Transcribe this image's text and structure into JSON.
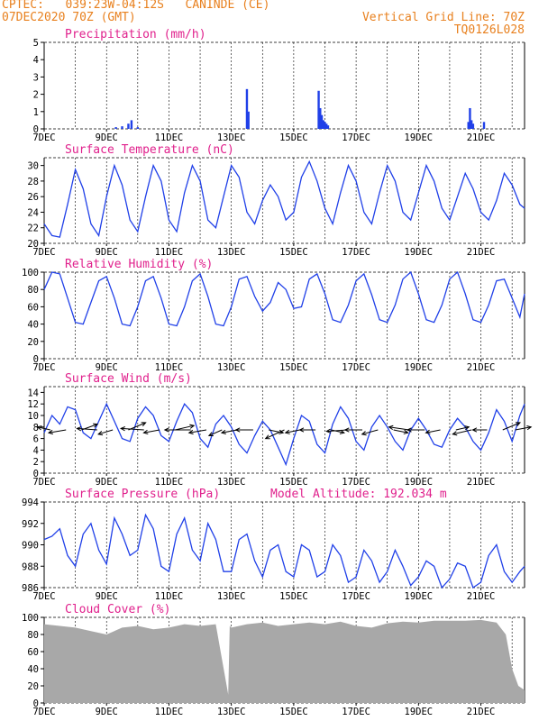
{
  "header": {
    "line1_left": "CPTEC:   039:23W-04:12S   CANINDE (CE)",
    "line2_left": "07DEC2020 70Z (GMT)",
    "line2_right": "Vertical Grid Line: 70Z",
    "line3_right": "TQ0126L028",
    "color": "#e8801e"
  },
  "colors": {
    "title": "#e0208c",
    "line": "#2040e8",
    "bar": "#2040e8",
    "cloud": "#a8a8a8",
    "grid": "#000000"
  },
  "chart_data": [
    {
      "type": "bar",
      "key": "precip",
      "title": "Precipitation (mm/h)",
      "ylim": [
        0,
        5
      ],
      "yticks": [
        0,
        1,
        2,
        3,
        4,
        5
      ],
      "x_range_days": [
        7,
        22.4
      ],
      "xticks": [
        "7DEC",
        "9DEC",
        "11DEC",
        "13DEC",
        "15DEC",
        "17DEC",
        "19DEC",
        "21DEC"
      ],
      "x": [
        9.3,
        9.5,
        9.7,
        9.8,
        10.0,
        13.5,
        13.55,
        15.8,
        15.85,
        15.9,
        15.95,
        16.0,
        16.05,
        16.1,
        20.6,
        20.65,
        20.7,
        20.75,
        21.1
      ],
      "values": [
        0.1,
        0.15,
        0.3,
        0.5,
        0.1,
        2.3,
        1.0,
        2.2,
        1.2,
        0.8,
        0.5,
        0.4,
        0.3,
        0.2,
        0.4,
        1.2,
        0.5,
        0.3,
        0.4
      ]
    },
    {
      "type": "line",
      "key": "temp",
      "title": "Surface Temperature (nC)",
      "ylim": [
        20,
        31
      ],
      "yticks": [
        20,
        22,
        24,
        26,
        28,
        30
      ],
      "x_range_days": [
        7,
        22.4
      ],
      "xticks": [
        "7DEC",
        "9DEC",
        "11DEC",
        "13DEC",
        "15DEC",
        "17DEC",
        "19DEC",
        "21DEC"
      ],
      "x": [
        7.0,
        7.25,
        7.5,
        7.75,
        8.0,
        8.25,
        8.5,
        8.75,
        9.0,
        9.25,
        9.5,
        9.75,
        10.0,
        10.25,
        10.5,
        10.75,
        11.0,
        11.25,
        11.5,
        11.75,
        12.0,
        12.25,
        12.5,
        12.75,
        13.0,
        13.25,
        13.5,
        13.75,
        14.0,
        14.25,
        14.5,
        14.75,
        15.0,
        15.25,
        15.5,
        15.75,
        16.0,
        16.25,
        16.5,
        16.75,
        17.0,
        17.25,
        17.5,
        17.75,
        18.0,
        18.25,
        18.5,
        18.75,
        19.0,
        19.25,
        19.5,
        19.75,
        20.0,
        20.25,
        20.5,
        20.75,
        21.0,
        21.25,
        21.5,
        21.75,
        22.0,
        22.25,
        22.4
      ],
      "values": [
        22.5,
        21.0,
        20.8,
        25.0,
        29.5,
        27.0,
        22.5,
        21.0,
        26.0,
        30.0,
        27.5,
        23.0,
        21.5,
        26.0,
        30.0,
        28.0,
        23.0,
        21.5,
        26.5,
        30.0,
        28.0,
        23.0,
        22.0,
        26.0,
        30.0,
        28.5,
        24.0,
        22.5,
        25.5,
        27.5,
        26.0,
        23.0,
        24.0,
        28.5,
        30.5,
        28.0,
        24.5,
        22.5,
        26.5,
        30.0,
        28.0,
        24.0,
        22.5,
        26.5,
        30.0,
        28.0,
        24.0,
        23.0,
        26.5,
        30.0,
        28.0,
        24.5,
        23.0,
        26.0,
        29.0,
        27.0,
        24.0,
        23.0,
        25.5,
        29.0,
        27.5,
        25.0,
        24.5
      ]
    },
    {
      "type": "line",
      "key": "rh",
      "title": "Relative Humidity (%)",
      "ylim": [
        0,
        100
      ],
      "yticks": [
        0,
        20,
        40,
        60,
        80,
        100
      ],
      "x_range_days": [
        7,
        22.4
      ],
      "xticks": [
        "7DEC",
        "9DEC",
        "11DEC",
        "13DEC",
        "15DEC",
        "17DEC",
        "19DEC",
        "21DEC"
      ],
      "x": [
        7.0,
        7.25,
        7.5,
        7.75,
        8.0,
        8.25,
        8.5,
        8.75,
        9.0,
        9.25,
        9.5,
        9.75,
        10.0,
        10.25,
        10.5,
        10.75,
        11.0,
        11.25,
        11.5,
        11.75,
        12.0,
        12.25,
        12.5,
        12.75,
        13.0,
        13.25,
        13.5,
        13.75,
        14.0,
        14.25,
        14.5,
        14.75,
        15.0,
        15.25,
        15.5,
        15.75,
        16.0,
        16.25,
        16.5,
        16.75,
        17.0,
        17.25,
        17.5,
        17.75,
        18.0,
        18.25,
        18.5,
        18.75,
        19.0,
        19.25,
        19.5,
        19.75,
        20.0,
        20.25,
        20.5,
        20.75,
        21.0,
        21.25,
        21.5,
        21.75,
        22.0,
        22.25,
        22.4
      ],
      "values": [
        80,
        100,
        98,
        70,
        42,
        40,
        65,
        90,
        95,
        70,
        40,
        38,
        60,
        90,
        95,
        70,
        40,
        38,
        60,
        90,
        98,
        72,
        40,
        38,
        60,
        92,
        95,
        72,
        55,
        65,
        88,
        80,
        58,
        60,
        92,
        98,
        75,
        45,
        42,
        62,
        90,
        98,
        74,
        45,
        42,
        62,
        92,
        100,
        75,
        45,
        42,
        62,
        92,
        100,
        75,
        45,
        42,
        62,
        90,
        92,
        70,
        48,
        75
      ]
    },
    {
      "type": "line",
      "key": "wind",
      "title": "Surface Wind (m/s)",
      "ylim": [
        0,
        15
      ],
      "yticks": [
        0,
        2,
        4,
        6,
        8,
        10,
        12,
        14
      ],
      "x_range_days": [
        7,
        22.4
      ],
      "xticks": [
        "7DEC",
        "9DEC",
        "11DEC",
        "13DEC",
        "15DEC",
        "17DEC",
        "19DEC",
        "21DEC"
      ],
      "x": [
        7.0,
        7.25,
        7.5,
        7.75,
        8.0,
        8.25,
        8.5,
        8.75,
        9.0,
        9.25,
        9.5,
        9.75,
        10.0,
        10.25,
        10.5,
        10.75,
        11.0,
        11.25,
        11.5,
        11.75,
        12.0,
        12.25,
        12.5,
        12.75,
        13.0,
        13.25,
        13.5,
        13.75,
        14.0,
        14.25,
        14.5,
        14.75,
        15.0,
        15.25,
        15.5,
        15.75,
        16.0,
        16.25,
        16.5,
        16.75,
        17.0,
        17.25,
        17.5,
        17.75,
        18.0,
        18.25,
        18.5,
        18.75,
        19.0,
        19.25,
        19.5,
        19.75,
        20.0,
        20.25,
        20.5,
        20.75,
        21.0,
        21.25,
        21.5,
        21.75,
        22.0,
        22.25,
        22.4
      ],
      "values": [
        7.0,
        10.0,
        8.5,
        11.5,
        11.0,
        7.0,
        6.0,
        9.0,
        12.0,
        9.0,
        6.0,
        5.5,
        9.5,
        11.5,
        10.0,
        6.5,
        5.5,
        9.0,
        12.0,
        10.5,
        6.0,
        4.5,
        8.5,
        10.0,
        8.0,
        5.0,
        3.5,
        6.5,
        9.0,
        7.5,
        4.5,
        1.5,
        6.0,
        10.0,
        9.0,
        5.0,
        3.5,
        8.5,
        11.5,
        9.5,
        5.5,
        4.0,
        8.0,
        10.0,
        8.0,
        5.5,
        4.0,
        7.5,
        9.5,
        7.5,
        5.0,
        4.5,
        7.5,
        9.5,
        8.0,
        5.5,
        4.0,
        7.0,
        11.0,
        9.0,
        5.5,
        10.0,
        12.0
      ],
      "arrow_x": [
        7.2,
        7.7,
        8.2,
        8.7,
        9.2,
        9.7,
        10.2,
        10.7,
        11.2,
        11.7,
        12.2,
        12.7,
        13.2,
        13.7,
        14.2,
        14.7,
        15.2,
        15.7,
        16.2,
        16.7,
        17.2,
        17.7,
        18.2,
        18.7,
        19.2,
        19.7,
        20.2,
        20.7,
        21.2,
        21.7,
        22.1
      ],
      "arrow_u": [
        -4.5,
        -6.0,
        5.5,
        -7.0,
        -5.0,
        6.0,
        -8.0,
        -5.5,
        6.5,
        -9.0,
        -6.0,
        -4.5,
        -5.5,
        -6.0,
        5.0,
        -6.5,
        -5.0,
        -5.5,
        4.5,
        -7.0,
        -6.0,
        -5.5,
        5.0,
        -7.0,
        -6.0,
        -5.0,
        4.5,
        -6.5,
        -5.0,
        6.0,
        5.5
      ],
      "arrow_v": [
        1.0,
        -1.0,
        2.0,
        0.5,
        -1.5,
        2.5,
        0.5,
        -1.0,
        1.5,
        0.0,
        -1.0,
        -2.0,
        -1.0,
        0.0,
        -1.0,
        -3.0,
        -1.0,
        0.0,
        -1.0,
        -0.5,
        0.0,
        -1.5,
        -1.0,
        1.0,
        0.0,
        -1.0,
        1.0,
        -1.5,
        0.0,
        2.5,
        1.0
      ]
    },
    {
      "type": "line",
      "key": "pres",
      "title": "Surface Pressure (hPa)",
      "annotation": "Model Altitude: 192.034 m",
      "ylim": [
        986,
        994
      ],
      "yticks": [
        986,
        988,
        990,
        992,
        994
      ],
      "x_range_days": [
        7,
        22.4
      ],
      "xticks": [
        "7DEC",
        "9DEC",
        "11DEC",
        "13DEC",
        "15DEC",
        "17DEC",
        "19DEC",
        "21DEC"
      ],
      "x": [
        7.0,
        7.25,
        7.5,
        7.75,
        8.0,
        8.25,
        8.5,
        8.75,
        9.0,
        9.25,
        9.5,
        9.75,
        10.0,
        10.25,
        10.5,
        10.75,
        11.0,
        11.25,
        11.5,
        11.75,
        12.0,
        12.25,
        12.5,
        12.75,
        13.0,
        13.25,
        13.5,
        13.75,
        14.0,
        14.25,
        14.5,
        14.75,
        15.0,
        15.25,
        15.5,
        15.75,
        16.0,
        16.25,
        16.5,
        16.75,
        17.0,
        17.25,
        17.5,
        17.75,
        18.0,
        18.25,
        18.5,
        18.75,
        19.0,
        19.25,
        19.5,
        19.75,
        20.0,
        20.25,
        20.5,
        20.75,
        21.0,
        21.25,
        21.5,
        21.75,
        22.0,
        22.25,
        22.4
      ],
      "values": [
        990.5,
        990.8,
        991.5,
        989.0,
        988.0,
        991.0,
        992.0,
        989.5,
        988.2,
        992.5,
        991.0,
        989.0,
        989.5,
        992.8,
        991.5,
        988.0,
        987.5,
        991.0,
        992.5,
        989.5,
        988.5,
        992.0,
        990.5,
        987.5,
        987.5,
        990.5,
        991.0,
        988.5,
        987.0,
        989.5,
        990.0,
        987.5,
        987.0,
        990.0,
        989.5,
        987.0,
        987.5,
        990.0,
        989.0,
        986.5,
        987.0,
        989.5,
        988.5,
        986.5,
        987.5,
        989.5,
        988.0,
        986.2,
        987.0,
        988.5,
        988.0,
        986.0,
        986.8,
        988.3,
        988.0,
        986.0,
        986.5,
        989.0,
        990.0,
        987.5,
        986.5,
        987.5,
        988.0
      ]
    },
    {
      "type": "area",
      "key": "cloud",
      "title": "Cloud Cover (%)",
      "ylim": [
        0,
        100
      ],
      "yticks": [
        0,
        20,
        40,
        60,
        80,
        100
      ],
      "x_range_days": [
        7,
        22.4
      ],
      "xticks": [
        "7DEC",
        "9DEC",
        "11DEC",
        "13DEC",
        "15DEC",
        "17DEC",
        "19DEC",
        "21DEC"
      ],
      "x": [
        7.0,
        7.5,
        8.0,
        8.5,
        9.0,
        9.5,
        10.0,
        10.5,
        11.0,
        11.5,
        12.0,
        12.5,
        12.9,
        12.95,
        13.0,
        13.5,
        14.0,
        14.5,
        15.0,
        15.5,
        16.0,
        16.5,
        17.0,
        17.5,
        18.0,
        18.5,
        19.0,
        19.5,
        20.0,
        20.5,
        21.0,
        21.5,
        21.8,
        22.0,
        22.2,
        22.4
      ],
      "values": [
        92,
        90,
        88,
        84,
        80,
        88,
        90,
        86,
        88,
        92,
        90,
        92,
        10,
        90,
        88,
        92,
        94,
        90,
        92,
        94,
        92,
        95,
        90,
        88,
        93,
        95,
        94,
        96,
        96,
        96,
        97,
        94,
        80,
        40,
        20,
        15
      ]
    }
  ]
}
